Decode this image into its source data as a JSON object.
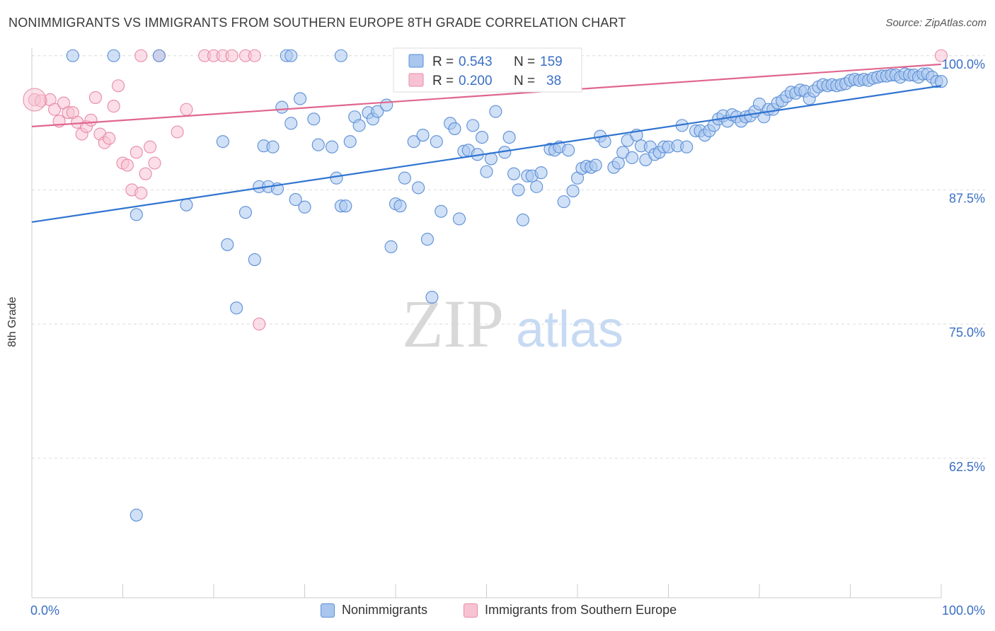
{
  "title": "NONIMMIGRANTS VS IMMIGRANTS FROM SOUTHERN EUROPE 8TH GRADE CORRELATION CHART",
  "source": "Source: ZipAtlas.com",
  "watermark": {
    "zip": "ZIP",
    "atlas": "atlas"
  },
  "colors": {
    "blue": "#5b8fd6",
    "blue_fill": "#a9c6ee",
    "blue_line": "#2f74d0",
    "pink": "#e98aa8",
    "pink_fill": "#f7c3d3",
    "pink_line": "#e0668f",
    "tick_text": "#3a6fc4"
  },
  "legend": {
    "items": [
      {
        "r_label": "R =",
        "r_value": "0.543",
        "n_label": "N =",
        "n_value": "159"
      },
      {
        "r_label": "R =",
        "r_value": "0.200",
        "n_label": "N =",
        "n_value": "38"
      }
    ]
  },
  "bottom_legend": {
    "nonimmigrants": "Nonimmigrants",
    "immigrants": "Immigrants from Southern Europe"
  },
  "chart_data": {
    "type": "scatter",
    "title": "NONIMMIGRANTS VS IMMIGRANTS FROM SOUTHERN EUROPE 8TH GRADE CORRELATION CHART",
    "xlabel": "",
    "ylabel": "8th Grade",
    "xlim": [
      0,
      100
    ],
    "ylim": [
      49.5,
      101.5
    ],
    "x_tick_labels": [
      "0.0%",
      "100.0%"
    ],
    "y_ticks": [
      62.5,
      75.0,
      87.5,
      100.0
    ],
    "y_tick_labels": [
      "62.5%",
      "75.0%",
      "87.5%",
      "100.0%"
    ],
    "grid": "horizontal dashed",
    "legend_position": "top-center",
    "series": [
      {
        "name": "Nonimmigrants",
        "r": 0.543,
        "n": 159,
        "trend": [
          [
            0,
            84.5
          ],
          [
            100,
            97.2
          ]
        ],
        "points": [
          [
            4.5,
            100
          ],
          [
            9,
            100
          ],
          [
            14,
            100
          ],
          [
            28,
            100
          ],
          [
            28.5,
            100
          ],
          [
            34,
            100
          ],
          [
            11.5,
            57.2
          ],
          [
            11.5,
            85.2
          ],
          [
            17,
            86.1
          ],
          [
            21,
            92.0
          ],
          [
            21.5,
            82.4
          ],
          [
            22.5,
            76.5
          ],
          [
            23.5,
            85.4
          ],
          [
            24.5,
            81.0
          ],
          [
            25,
            87.8
          ],
          [
            25.5,
            91.6
          ],
          [
            26,
            87.8
          ],
          [
            26.5,
            91.5
          ],
          [
            27,
            87.6
          ],
          [
            27.5,
            95.2
          ],
          [
            28.5,
            93.7
          ],
          [
            29,
            86.6
          ],
          [
            29.5,
            96.0
          ],
          [
            30,
            85.9
          ],
          [
            31,
            94.1
          ],
          [
            31.5,
            91.7
          ],
          [
            33,
            91.5
          ],
          [
            33.5,
            88.6
          ],
          [
            34,
            86.0
          ],
          [
            34.5,
            86.0
          ],
          [
            35,
            92.0
          ],
          [
            35.5,
            94.3
          ],
          [
            36,
            93.5
          ],
          [
            37,
            94.7
          ],
          [
            37.5,
            94.1
          ],
          [
            38,
            94.8
          ],
          [
            39,
            95.4
          ],
          [
            39.5,
            82.2
          ],
          [
            40,
            86.2
          ],
          [
            40.5,
            86.0
          ],
          [
            41,
            88.6
          ],
          [
            42,
            92.0
          ],
          [
            42.5,
            87.7
          ],
          [
            43,
            92.6
          ],
          [
            43.5,
            82.9
          ],
          [
            44,
            77.5
          ],
          [
            44.5,
            92.0
          ],
          [
            45,
            85.5
          ],
          [
            46,
            93.7
          ],
          [
            46.5,
            93.2
          ],
          [
            47,
            84.8
          ],
          [
            47.5,
            91.1
          ],
          [
            48,
            91.2
          ],
          [
            48.5,
            93.5
          ],
          [
            49,
            90.8
          ],
          [
            49.5,
            92.4
          ],
          [
            50,
            89.2
          ],
          [
            50.5,
            90.4
          ],
          [
            51,
            94.8
          ],
          [
            52,
            91.0
          ],
          [
            52.5,
            92.4
          ],
          [
            53,
            89.0
          ],
          [
            53.5,
            87.5
          ],
          [
            54,
            84.7
          ],
          [
            54.5,
            88.8
          ],
          [
            55,
            88.8
          ],
          [
            55.5,
            87.8
          ],
          [
            56,
            89.1
          ],
          [
            57,
            91.3
          ],
          [
            57.5,
            91.2
          ],
          [
            58,
            91.5
          ],
          [
            58.5,
            86.4
          ],
          [
            59,
            91.2
          ],
          [
            59.5,
            87.4
          ],
          [
            60,
            88.6
          ],
          [
            60.5,
            89.5
          ],
          [
            61,
            89.7
          ],
          [
            61.5,
            89.6
          ],
          [
            62,
            89.8
          ],
          [
            62.5,
            92.5
          ],
          [
            63,
            92.0
          ],
          [
            64,
            89.6
          ],
          [
            64.5,
            90.0
          ],
          [
            65,
            91.0
          ],
          [
            65.5,
            92.1
          ],
          [
            66,
            90.5
          ],
          [
            66.5,
            92.6
          ],
          [
            67,
            91.6
          ],
          [
            67.5,
            90.3
          ],
          [
            68,
            91.5
          ],
          [
            68.5,
            90.8
          ],
          [
            69,
            91.0
          ],
          [
            69.5,
            91.5
          ],
          [
            70,
            91.5
          ],
          [
            71,
            91.6
          ],
          [
            71.5,
            93.5
          ],
          [
            72,
            91.5
          ],
          [
            73,
            93.0
          ],
          [
            73.5,
            93.0
          ],
          [
            74,
            92.6
          ],
          [
            74.5,
            93.0
          ],
          [
            75,
            93.5
          ],
          [
            75.5,
            94.1
          ],
          [
            76,
            94.4
          ],
          [
            76.5,
            93.9
          ],
          [
            77,
            94.5
          ],
          [
            77.5,
            94.3
          ],
          [
            78,
            93.9
          ],
          [
            78.5,
            94.3
          ],
          [
            79,
            94.4
          ],
          [
            79.5,
            94.8
          ],
          [
            80,
            95.5
          ],
          [
            80.5,
            94.3
          ],
          [
            81,
            95.0
          ],
          [
            81.5,
            95.0
          ],
          [
            82,
            95.6
          ],
          [
            82.5,
            95.8
          ],
          [
            83,
            96.2
          ],
          [
            83.5,
            96.6
          ],
          [
            84,
            96.5
          ],
          [
            84.5,
            96.8
          ],
          [
            85,
            96.7
          ],
          [
            85.5,
            96.0
          ],
          [
            86,
            96.7
          ],
          [
            86.5,
            97.1
          ],
          [
            87,
            97.3
          ],
          [
            87.5,
            97.2
          ],
          [
            88,
            97.3
          ],
          [
            88.5,
            97.2
          ],
          [
            89,
            97.3
          ],
          [
            89.5,
            97.4
          ],
          [
            90,
            97.7
          ],
          [
            90.5,
            97.8
          ],
          [
            91,
            97.7
          ],
          [
            91.5,
            97.8
          ],
          [
            92,
            97.7
          ],
          [
            92.5,
            97.9
          ],
          [
            93,
            98.0
          ],
          [
            93.5,
            98.1
          ],
          [
            94,
            98.1
          ],
          [
            94.5,
            98.2
          ],
          [
            95,
            98.2
          ],
          [
            95.5,
            98.0
          ],
          [
            96,
            98.3
          ],
          [
            96.5,
            98.2
          ],
          [
            97,
            98.2
          ],
          [
            97.5,
            98.0
          ],
          [
            98,
            98.3
          ],
          [
            98.5,
            98.3
          ],
          [
            99,
            98.0
          ],
          [
            99.5,
            97.6
          ],
          [
            100,
            97.6
          ]
        ]
      },
      {
        "name": "Immigrants from Southern Europe",
        "r": 0.2,
        "n": 38,
        "trend": [
          [
            0,
            93.4
          ],
          [
            100,
            99.2
          ]
        ],
        "points": [
          [
            0.3,
            95.9
          ],
          [
            1,
            95.8
          ],
          [
            2,
            95.9
          ],
          [
            2.5,
            95.0
          ],
          [
            3,
            93.9
          ],
          [
            3.5,
            95.6
          ],
          [
            4,
            94.7
          ],
          [
            4.5,
            94.7
          ],
          [
            5,
            93.8
          ],
          [
            5.5,
            92.7
          ],
          [
            6,
            93.4
          ],
          [
            6.5,
            94.0
          ],
          [
            7,
            96.1
          ],
          [
            7.5,
            92.7
          ],
          [
            8,
            91.9
          ],
          [
            8.5,
            92.3
          ],
          [
            9,
            95.3
          ],
          [
            9.5,
            97.2
          ],
          [
            10,
            90.0
          ],
          [
            10.5,
            89.8
          ],
          [
            11,
            87.5
          ],
          [
            11.5,
            91.0
          ],
          [
            12,
            87.2
          ],
          [
            12.5,
            89.0
          ],
          [
            13,
            91.5
          ],
          [
            13.5,
            90.0
          ],
          [
            16,
            92.9
          ],
          [
            17,
            95.0
          ],
          [
            19,
            100
          ],
          [
            20,
            100
          ],
          [
            21,
            100
          ],
          [
            22,
            100
          ],
          [
            23.5,
            100
          ],
          [
            24.5,
            100
          ],
          [
            25,
            75.0
          ],
          [
            12,
            100
          ],
          [
            14,
            100
          ],
          [
            100,
            100
          ]
        ]
      }
    ]
  }
}
